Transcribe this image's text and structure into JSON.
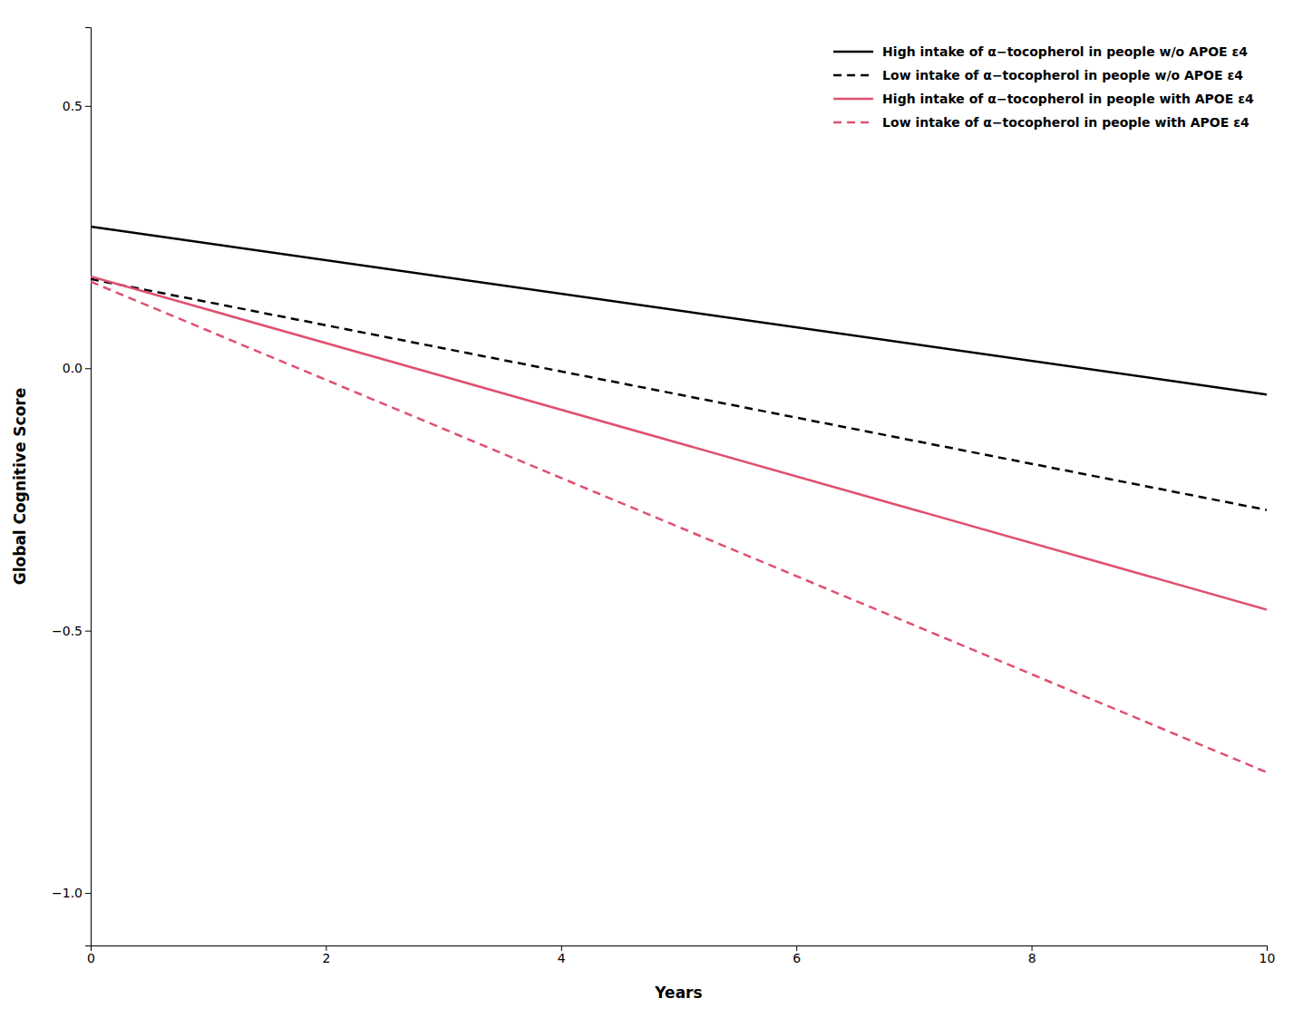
{
  "chart_data": {
    "type": "line",
    "xlabel": "Years",
    "ylabel": "Global Cognitive Score",
    "x": [
      0,
      10
    ],
    "series": [
      {
        "name": "High intake of α−tocopherol in people w/o APOE ε4",
        "color": "#000000",
        "line_style": "solid",
        "values": [
          0.27,
          -0.05
        ]
      },
      {
        "name": "Low intake of α−tocopherol in people w/o APOE ε4",
        "color": "#000000",
        "line_style": "dashed",
        "values": [
          0.17,
          -0.27
        ]
      },
      {
        "name": "High intake of α−tocopherol in people with APOE ε4",
        "color": "#e05070",
        "line_style": "solid",
        "values": [
          0.175,
          -0.46
        ]
      },
      {
        "name": "Low intake of α−tocopherol in people with APOE ε4",
        "color": "#e05070",
        "line_style": "dashed",
        "values": [
          0.165,
          -0.77
        ]
      }
    ],
    "xlim": [
      0,
      10
    ],
    "ylim": [
      -1.1,
      0.65
    ],
    "xticks": [
      0,
      2,
      4,
      6,
      8,
      10
    ],
    "yticks": [
      {
        "value": -1.0,
        "label": "−1.0"
      },
      {
        "value": -0.5,
        "label": "−0.5"
      },
      {
        "value": 0.0,
        "label": "0.0"
      },
      {
        "value": 0.5,
        "label": "0.5"
      }
    ],
    "grid": false,
    "legend": "upper right"
  }
}
